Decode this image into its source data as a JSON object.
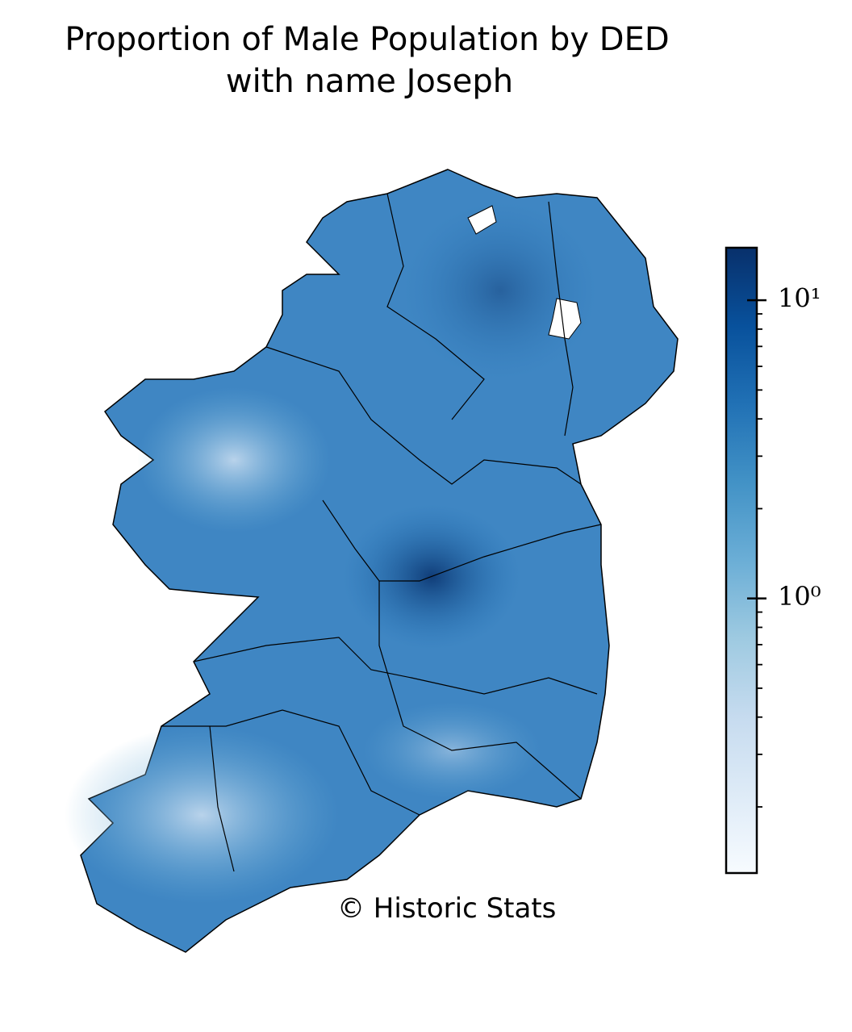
{
  "title": [
    "Proportion of Male Population by DED",
    "with name Joseph"
  ],
  "credit": "© Historic Stats",
  "colorbar": {
    "scale": "log",
    "lim": [
      0.12,
      15
    ],
    "ticks": [
      {
        "value": 1,
        "label": "10⁰"
      },
      {
        "value": 10,
        "label": "10¹"
      }
    ],
    "minor_ticks": [
      0.2,
      0.3,
      0.4,
      0.5,
      0.6,
      0.7,
      0.8,
      0.9,
      2,
      3,
      4,
      5,
      6,
      7,
      8,
      9
    ],
    "colormap": [
      "#f7fbff",
      "#deebf7",
      "#c6dbef",
      "#9ecae1",
      "#6baed6",
      "#4292c6",
      "#2171b5",
      "#08519c",
      "#08306b"
    ]
  }
}
